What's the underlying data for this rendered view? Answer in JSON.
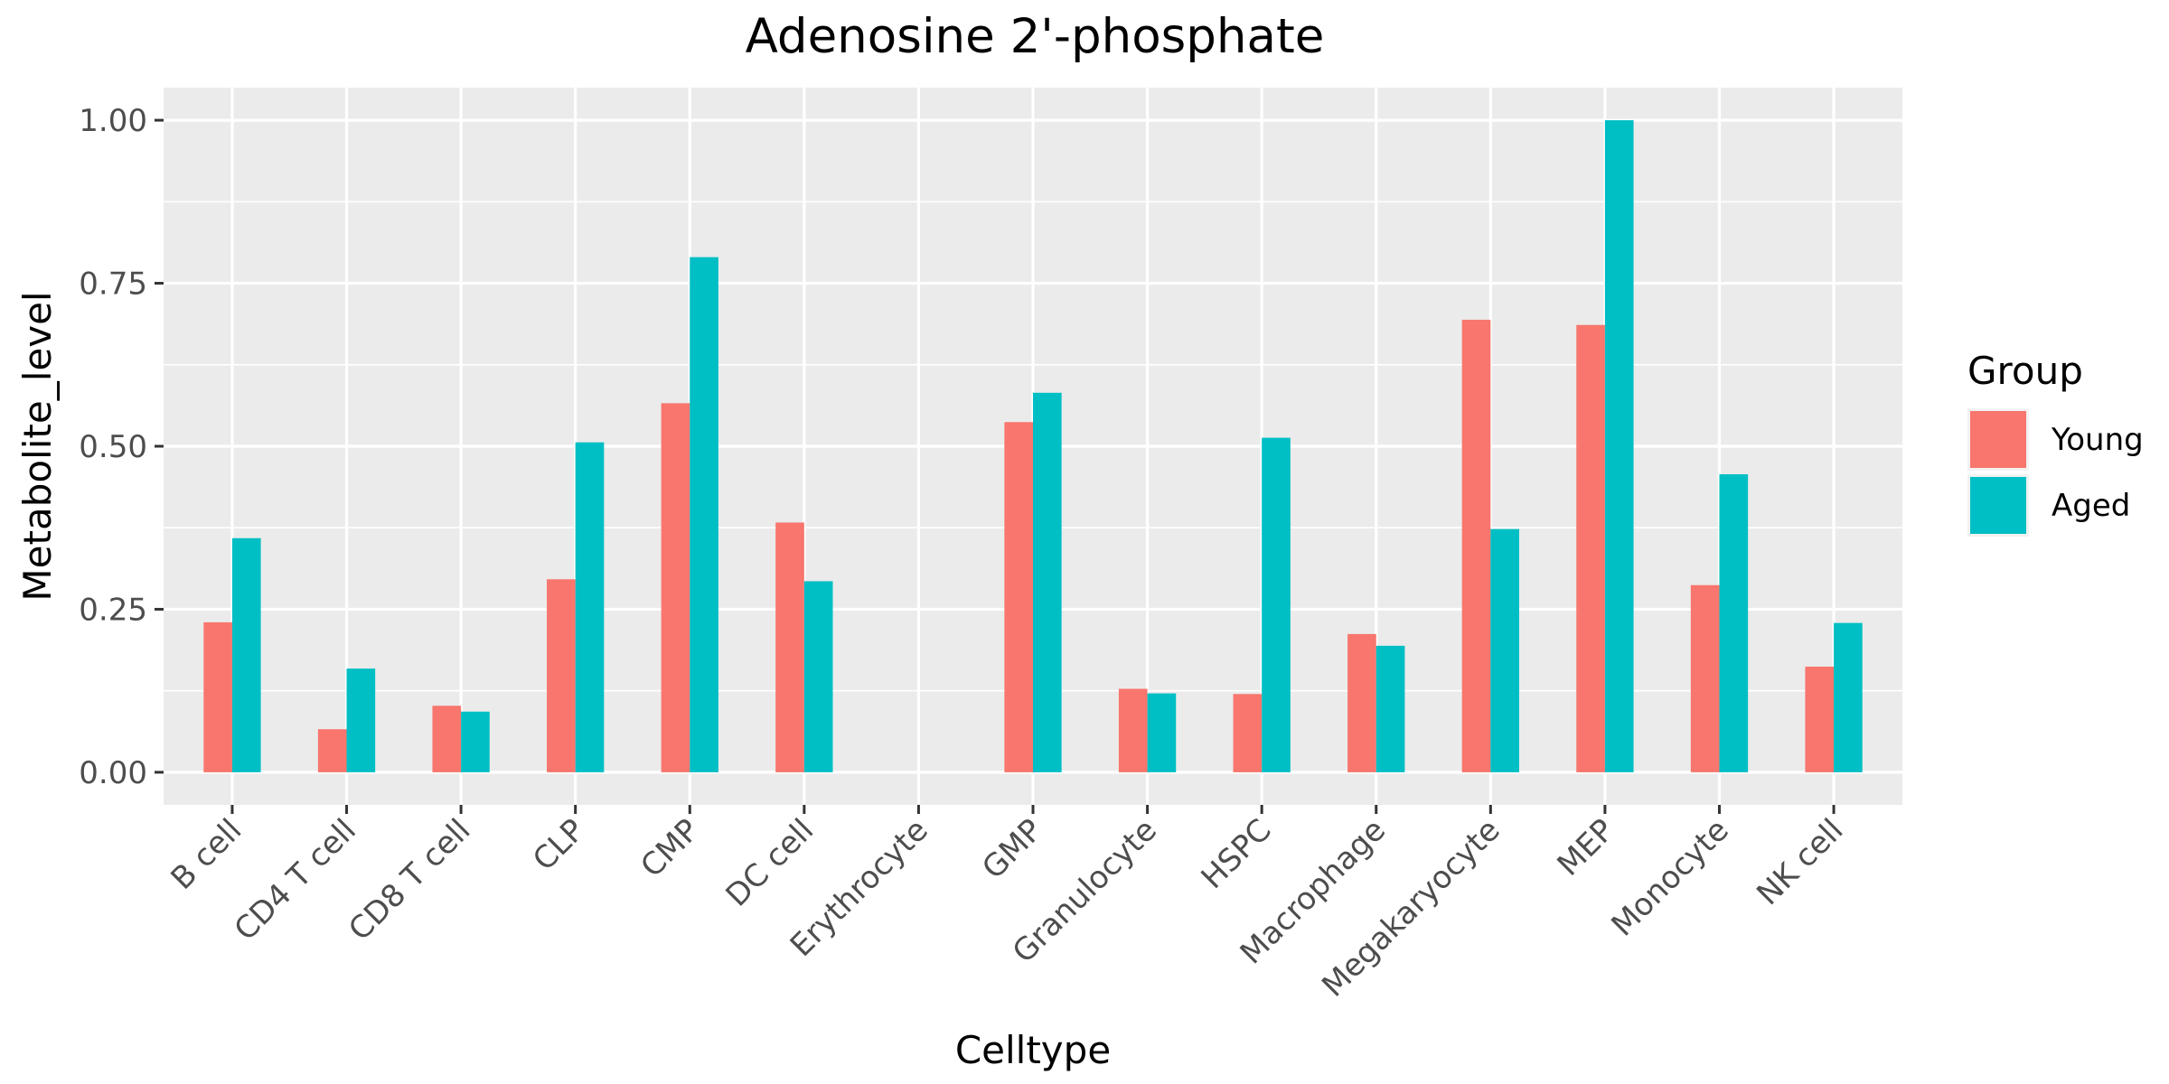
{
  "chart_data": {
    "type": "bar",
    "title": "Adenosine 2'-phosphate",
    "xlabel": "Celltype",
    "ylabel": "Metabolite_level",
    "ylim": [
      -0.05,
      1.05
    ],
    "yticks": [
      0.0,
      0.25,
      0.5,
      0.75,
      1.0
    ],
    "ytick_labels": [
      "0.00",
      "0.25",
      "0.50",
      "0.75",
      "1.00"
    ],
    "grid": true,
    "legend_position": "right",
    "legend_title": "Group",
    "categories": [
      "B cell",
      "CD4 T cell",
      "CD8 T cell",
      "CLP",
      "CMP",
      "DC cell",
      "Erythrocyte",
      "GMP",
      "Granulocyte",
      "HSPC",
      "Macrophage",
      "Megakaryocyte",
      "MEP",
      "Monocyte",
      "NK cell"
    ],
    "series": [
      {
        "name": "Young",
        "color": "#F8766D",
        "values": [
          0.23,
          0.066,
          0.102,
          0.296,
          0.566,
          0.383,
          0.0,
          0.537,
          0.128,
          0.12,
          0.212,
          0.694,
          0.686,
          0.287,
          0.162
        ]
      },
      {
        "name": "Aged",
        "color": "#00BFC4",
        "values": [
          0.359,
          0.159,
          0.093,
          0.506,
          0.79,
          0.293,
          0.0,
          0.582,
          0.121,
          0.513,
          0.194,
          0.373,
          1.0,
          0.457,
          0.229
        ]
      }
    ]
  }
}
